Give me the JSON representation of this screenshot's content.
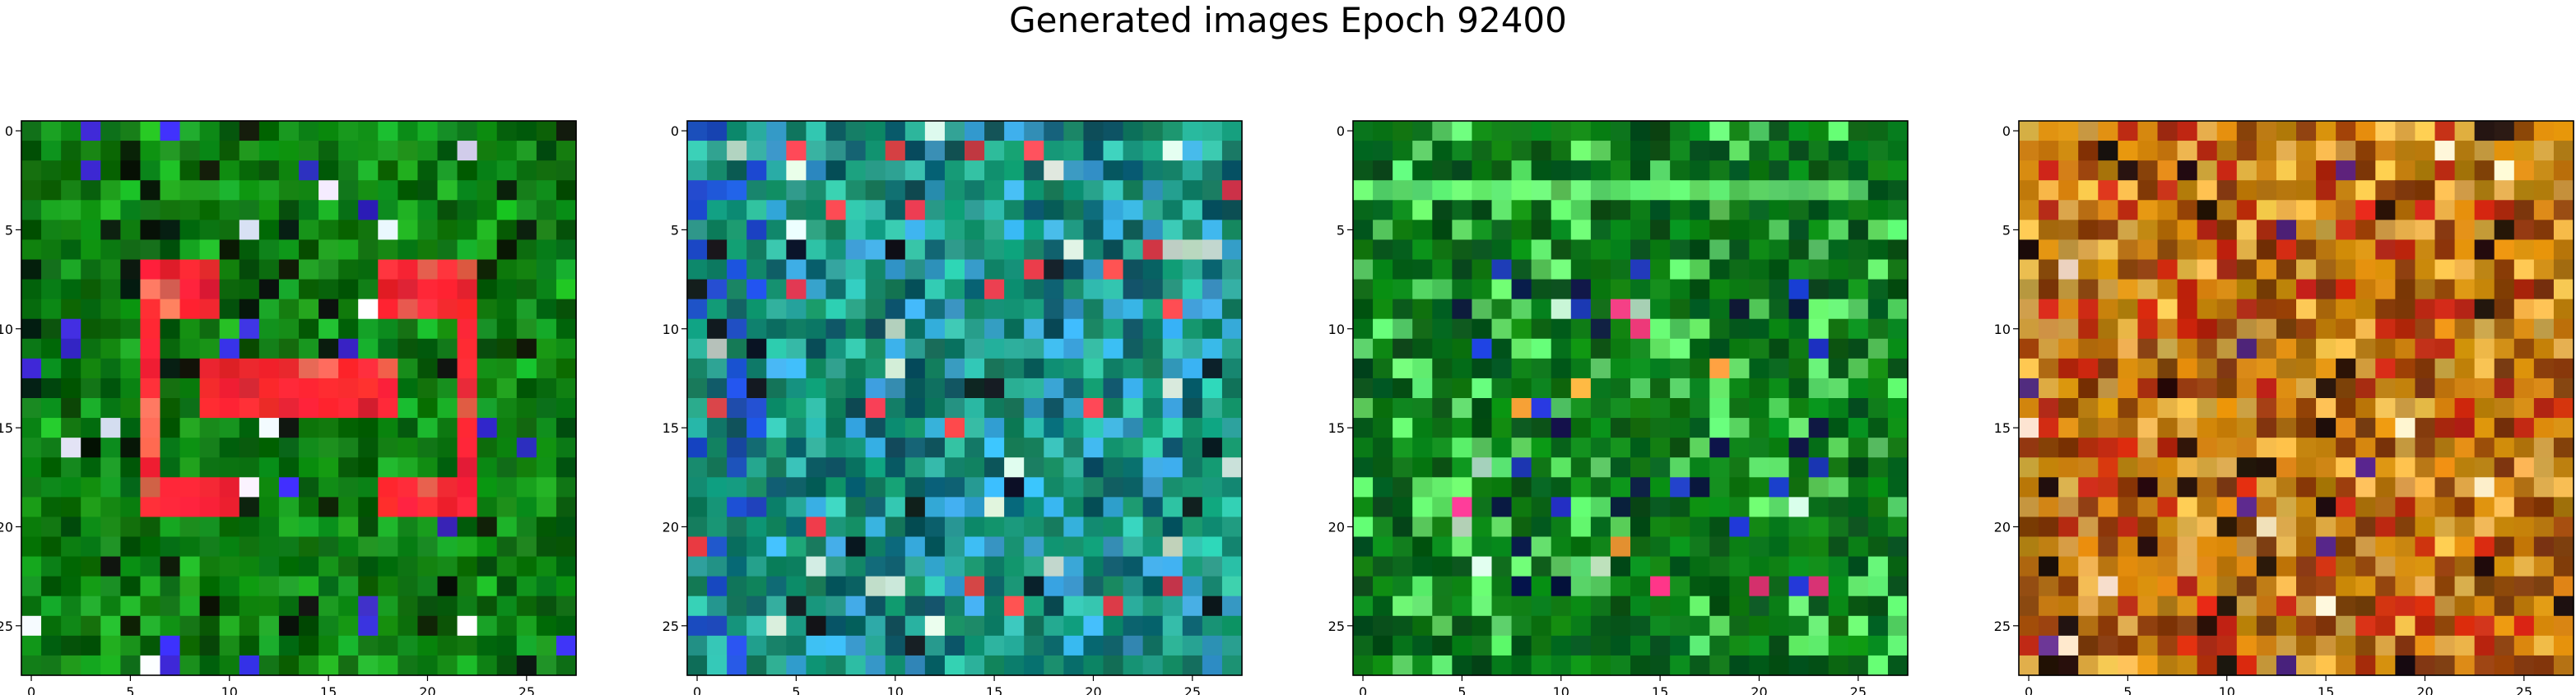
{
  "title": "Generated images Epoch 92400",
  "chart_data": [
    {
      "type": "heatmap",
      "subplot": 1,
      "grid_size": 28,
      "palette": {
        "base": "#0f7f14",
        "dark": "#045d07",
        "light": "#1da925",
        "hot": "#ff2733",
        "hot2": "#ff6a55",
        "cool": "#3a2cd9",
        "white": "#e7ecff",
        "black": "#0b1a0b"
      },
      "xticks": [
        0,
        5,
        10,
        15,
        20,
        25
      ],
      "yticks": [
        0,
        5,
        10,
        15,
        20,
        25
      ],
      "xlim": [
        -0.5,
        27.5
      ],
      "ylim": [
        27.5,
        -0.5
      ],
      "grid": false
    },
    {
      "type": "heatmap",
      "subplot": 2,
      "grid_size": 28,
      "palette": {
        "base": "#138a6b",
        "dark": "#0c5b66",
        "light": "#2fb3a0",
        "blue": "#1d4fc9",
        "sky": "#3aa6d9",
        "hot": "#e9424d",
        "pale": "#d9f0e0",
        "black": "#101a20"
      },
      "xticks": [
        0,
        5,
        10,
        15,
        20,
        25
      ],
      "yticks": [
        0,
        5,
        10,
        15,
        20,
        25
      ],
      "xlim": [
        -0.5,
        27.5
      ],
      "ylim": [
        27.5,
        -0.5
      ],
      "grid": false
    },
    {
      "type": "heatmap",
      "subplot": 3,
      "grid_size": 28,
      "palette": {
        "base": "#0d7f17",
        "dark": "#06561a",
        "light": "#5fe36a",
        "blue": "#1e39c9",
        "navy": "#0a1640",
        "pink": "#ff3c8a",
        "orange": "#f79a3c",
        "pale": "#c6f5d0"
      },
      "xticks": [
        0,
        5,
        10,
        15,
        20,
        25
      ],
      "yticks": [
        0,
        5,
        10,
        15,
        20,
        25
      ],
      "xlim": [
        -0.5,
        27.5
      ],
      "ylim": [
        27.5,
        -0.5
      ],
      "grid": false
    },
    {
      "type": "heatmap",
      "subplot": 4,
      "grid_size": 28,
      "palette": {
        "base": "#c8820f",
        "dark": "#8a3f0c",
        "light": "#e5b04a",
        "red": "#c42a12",
        "black": "#24100c",
        "pale": "#f3e1c8",
        "purple": "#5a2a8a"
      },
      "xticks": [
        0,
        5,
        10,
        15,
        20,
        25
      ],
      "yticks": [
        0,
        5,
        10,
        15,
        20,
        25
      ],
      "xlim": [
        -0.5,
        27.5
      ],
      "ylim": [
        27.5,
        -0.5
      ],
      "grid": false
    }
  ]
}
